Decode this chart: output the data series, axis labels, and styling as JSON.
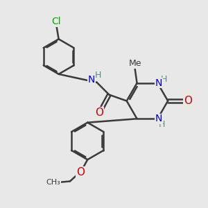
{
  "bg_color": "#e8e8e8",
  "bond_color": "#3a3a3a",
  "bond_width": 1.8,
  "atom_colors": {
    "C": "#3a3a3a",
    "N": "#0000cc",
    "O": "#cc0000",
    "H": "#5a8a8a",
    "Cl": "#00aa00"
  },
  "font_size": 9,
  "fig_size": [
    3.0,
    3.0
  ],
  "dpi": 100
}
